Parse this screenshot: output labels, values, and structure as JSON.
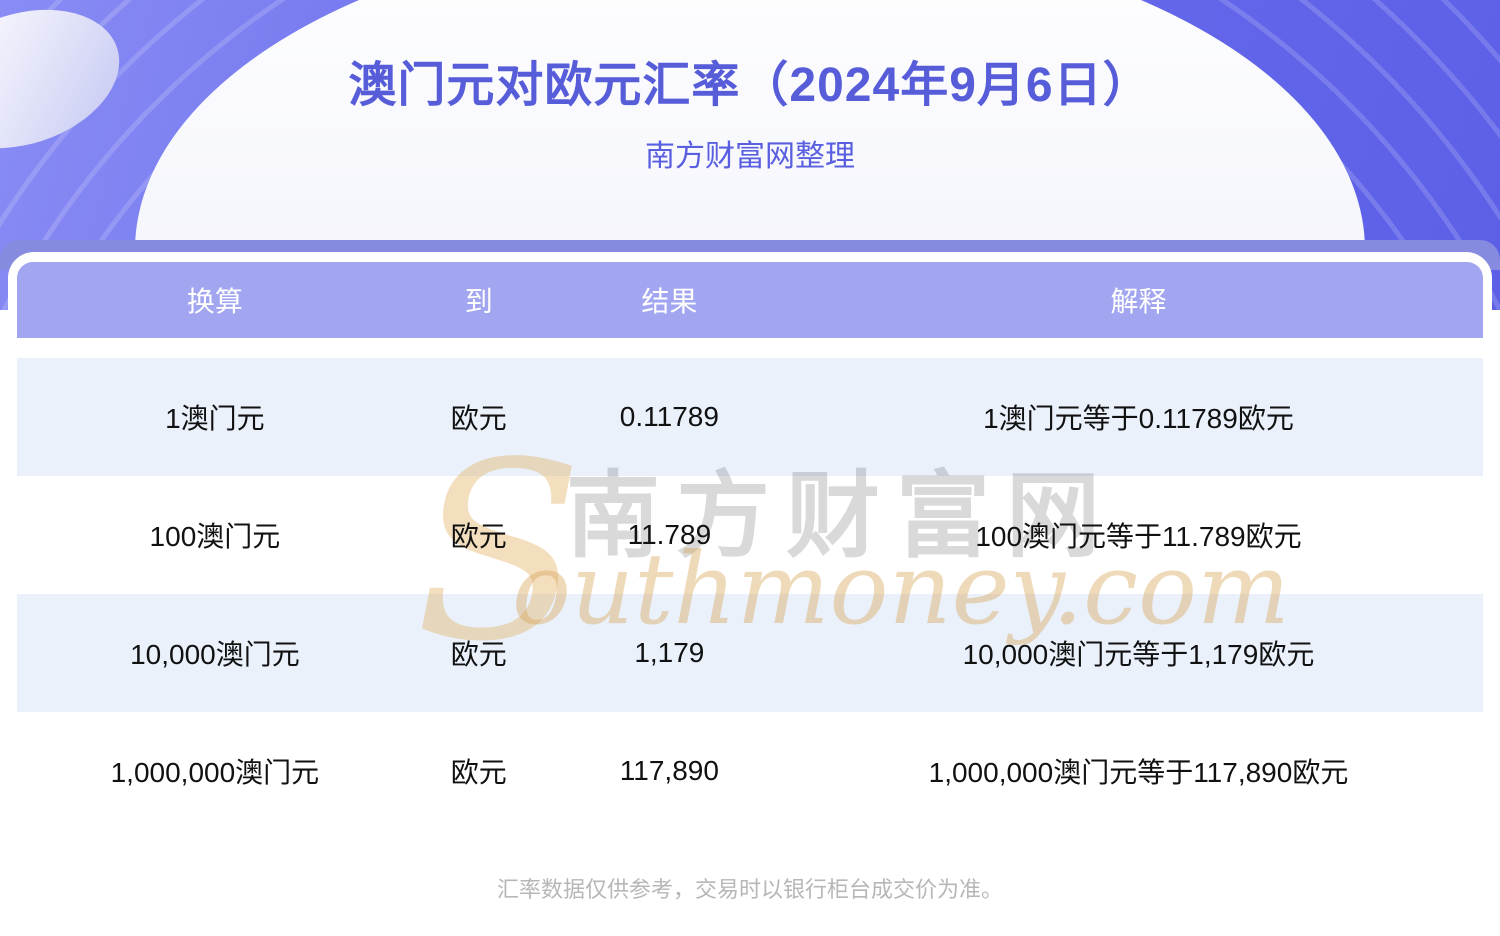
{
  "page": {
    "title": "澳门元对欧元汇率（2024年9月6日）",
    "subtitle": "南方财富网整理",
    "disclaimer": "汇率数据仅供参考，交易时以银行柜台成交价为准。"
  },
  "watermark": {
    "s": "S",
    "cn": "南方财富网",
    "en": "outhmoney.com"
  },
  "colors": {
    "hero_purple": "#6b6eec",
    "band_purple": "#878bdf",
    "header_purple": "#a2a5f0",
    "row_alt_blue": "#eaf1fb",
    "title_blue": "#575dd8",
    "watermark_gold": "#e2ae5e"
  },
  "table": {
    "columns": [
      "换算",
      "到",
      "结果",
      "解释"
    ],
    "rows": [
      [
        "1澳门元",
        "欧元",
        "0.11789",
        "1澳门元等于0.11789欧元"
      ],
      [
        "100澳门元",
        "欧元",
        "11.789",
        "100澳门元等于11.789欧元"
      ],
      [
        "10,000澳门元",
        "欧元",
        "1,179",
        "10,000澳门元等于1,179欧元"
      ],
      [
        "1,000,000澳门元",
        "欧元",
        "117,890",
        "1,000,000澳门元等于117,890欧元"
      ]
    ]
  }
}
